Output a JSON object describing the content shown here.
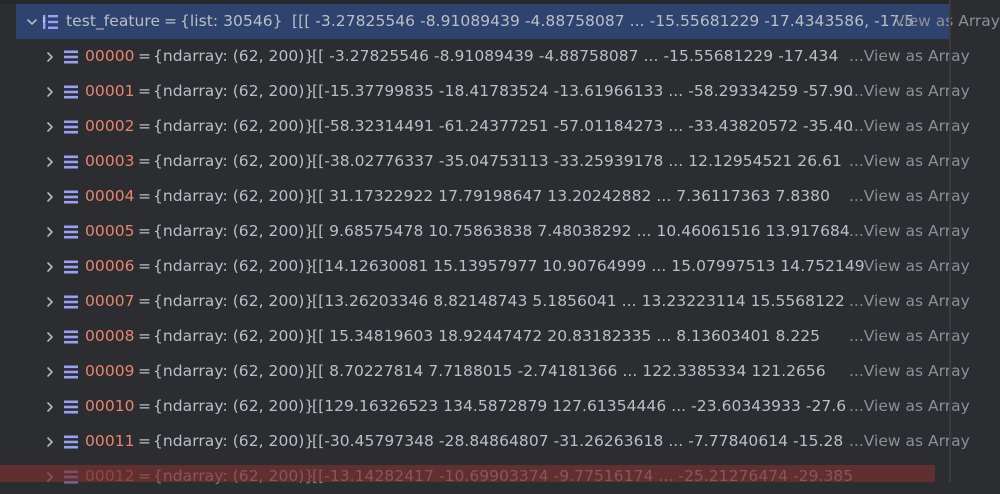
{
  "root": {
    "name": "test_feature",
    "type": "{list: 30546}",
    "preview": "[[[ -3.27825546   -8.91089439   -4.88758087 ... -15.55681229 -17.4343586,   -17.5",
    "view_label": "View as Array"
  },
  "rows": [
    {
      "key": "00000",
      "type": "{ndarray: (62, 200)}",
      "preview": "[[ -3.27825546   -8.91089439   -4.88758087 ... -15.55681229 -17.434",
      "view_label": "...View as Array"
    },
    {
      "key": "00001",
      "type": "{ndarray: (62, 200)}",
      "preview": "[[-15.37799835 -18.41783524 -13.61966133 ... -58.29334259 -57.90",
      "view_label": "...View as Array"
    },
    {
      "key": "00002",
      "type": "{ndarray: (62, 200)}",
      "preview": "[[-58.32314491 -61.24377251 -57.01184273 ... -33.43820572 -35.40",
      "view_label": "...View as Array"
    },
    {
      "key": "00003",
      "type": "{ndarray: (62, 200)}",
      "preview": "[[-38.02776337 -35.04753113 -33.25939178 ...  12.12954521  26.61",
      "view_label": "...View as Array"
    },
    {
      "key": "00004",
      "type": "{ndarray: (62, 200)}",
      "preview": "[[ 31.17322922  17.79198647  13.20242882 ...   7.36117363   7.8380",
      "view_label": "...View as Array"
    },
    {
      "key": "00005",
      "type": "{ndarray: (62, 200)}",
      "preview": "[[ 9.68575478 10.75863838  7.48038292 ... 10.46061516 13.917684",
      "view_label": "...View as Array"
    },
    {
      "key": "00006",
      "type": "{ndarray: (62, 200)}",
      "preview": "[[14.12630081 15.13957977 10.90764999 ... 15.07997513 14.752149",
      "view_label": "...View as Array"
    },
    {
      "key": "00007",
      "type": "{ndarray: (62, 200)}",
      "preview": "[[13.26203346  8.82148743  5.1856041  ... 13.23223114 15.5568122",
      "view_label": "...View as Array"
    },
    {
      "key": "00008",
      "type": "{ndarray: (62, 200)}",
      "preview": "[[ 15.34819603  18.92447472  20.83182335 ...   8.13603401   8.225",
      "view_label": "...View as Array"
    },
    {
      "key": "00009",
      "type": "{ndarray: (62, 200)}",
      "preview": "[[   8.70227814    7.7188015    -2.74181366 ... 122.3385334  121.2656",
      "view_label": "...View as Array"
    },
    {
      "key": "00010",
      "type": "{ndarray: (62, 200)}",
      "preview": "[[129.16326523 134.5872879  127.61354446 ... -23.60343933 -27.6",
      "view_label": "...View as Array"
    },
    {
      "key": "00011",
      "type": "{ndarray: (62, 200)}",
      "preview": "[[-30.45797348 -28.84864807 -31.26263618 ...  -7.77840614 -15.28",
      "view_label": "...View as Array"
    },
    {
      "key": "00012",
      "type": "{ndarray: (62, 200)}",
      "preview": "[[-13.14282417 -10.69903374  -9.77516174 ... -25.21276474 -29.385",
      "view_label": ""
    }
  ],
  "colors": {
    "background": "#2b2d30",
    "selection": "#2e436e",
    "key": "#e8846e",
    "text": "#bcbec4",
    "link": "#8c8f97",
    "icon": "#9aa0f5"
  },
  "icons": {
    "expand": "chevron-right-icon",
    "collapse": "chevron-down-icon",
    "list": "list-variable-icon",
    "array": "array-variable-icon"
  }
}
